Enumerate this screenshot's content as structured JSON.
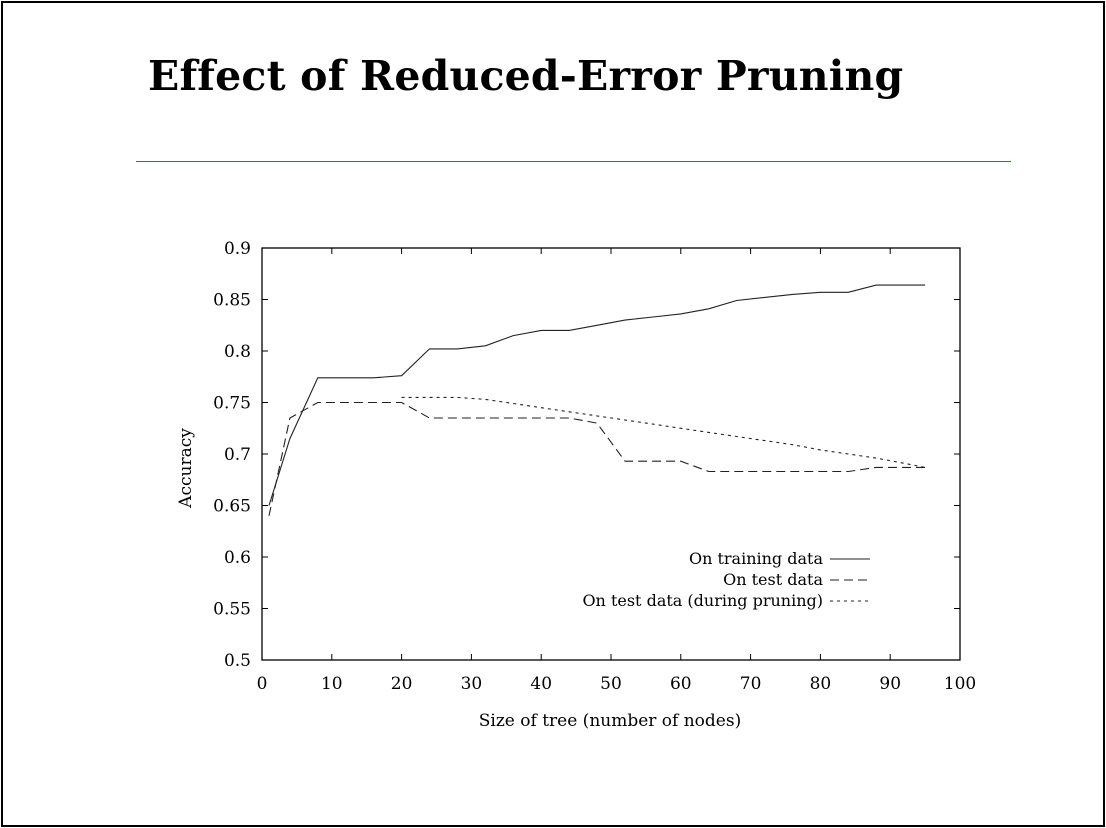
{
  "slide": {
    "title": "Effect of Reduced-Error Pruning",
    "rule_color": "#c0392b"
  },
  "chart_data": {
    "type": "line",
    "title": "",
    "xlabel": "Size of tree (number of nodes)",
    "ylabel": "Accuracy",
    "xlim": [
      0,
      100
    ],
    "ylim": [
      0.5,
      0.9
    ],
    "xticks": [
      "0",
      "10",
      "20",
      "30",
      "40",
      "50",
      "60",
      "70",
      "80",
      "90",
      "100"
    ],
    "yticks": [
      "0.5",
      "0.55",
      "0.6",
      "0.65",
      "0.7",
      "0.75",
      "0.8",
      "0.85",
      "0.9"
    ],
    "grid": false,
    "legend_position": "bottom-right",
    "series": [
      {
        "name": "On training data",
        "style": "solid",
        "points": [
          [
            1,
            0.65
          ],
          [
            4,
            0.715
          ],
          [
            8,
            0.774
          ],
          [
            12,
            0.774
          ],
          [
            16,
            0.774
          ],
          [
            20,
            0.776
          ],
          [
            24,
            0.802
          ],
          [
            28,
            0.802
          ],
          [
            32,
            0.805
          ],
          [
            36,
            0.815
          ],
          [
            40,
            0.82
          ],
          [
            44,
            0.82
          ],
          [
            48,
            0.825
          ],
          [
            52,
            0.83
          ],
          [
            56,
            0.833
          ],
          [
            60,
            0.836
          ],
          [
            64,
            0.841
          ],
          [
            68,
            0.849
          ],
          [
            72,
            0.852
          ],
          [
            76,
            0.855
          ],
          [
            80,
            0.857
          ],
          [
            84,
            0.857
          ],
          [
            88,
            0.864
          ],
          [
            92,
            0.864
          ],
          [
            95,
            0.864
          ]
        ]
      },
      {
        "name": "On test data",
        "style": "dashed",
        "points": [
          [
            1,
            0.64
          ],
          [
            4,
            0.735
          ],
          [
            8,
            0.75
          ],
          [
            12,
            0.75
          ],
          [
            16,
            0.75
          ],
          [
            20,
            0.75
          ],
          [
            24,
            0.735
          ],
          [
            28,
            0.735
          ],
          [
            32,
            0.735
          ],
          [
            36,
            0.735
          ],
          [
            40,
            0.735
          ],
          [
            44,
            0.735
          ],
          [
            48,
            0.73
          ],
          [
            52,
            0.693
          ],
          [
            56,
            0.693
          ],
          [
            60,
            0.693
          ],
          [
            64,
            0.683
          ],
          [
            68,
            0.683
          ],
          [
            72,
            0.683
          ],
          [
            76,
            0.683
          ],
          [
            80,
            0.683
          ],
          [
            84,
            0.683
          ],
          [
            88,
            0.687
          ],
          [
            92,
            0.687
          ],
          [
            95,
            0.687
          ]
        ]
      },
      {
        "name": "On test data (during pruning)",
        "style": "dotted",
        "points": [
          [
            20,
            0.755
          ],
          [
            24,
            0.755
          ],
          [
            28,
            0.755
          ],
          [
            32,
            0.753
          ],
          [
            36,
            0.749
          ],
          [
            40,
            0.745
          ],
          [
            44,
            0.741
          ],
          [
            48,
            0.737
          ],
          [
            52,
            0.733
          ],
          [
            56,
            0.729
          ],
          [
            60,
            0.725
          ],
          [
            64,
            0.721
          ],
          [
            68,
            0.717
          ],
          [
            72,
            0.713
          ],
          [
            76,
            0.709
          ],
          [
            80,
            0.704
          ],
          [
            84,
            0.7
          ],
          [
            88,
            0.696
          ],
          [
            92,
            0.691
          ],
          [
            95,
            0.687
          ]
        ]
      }
    ]
  }
}
